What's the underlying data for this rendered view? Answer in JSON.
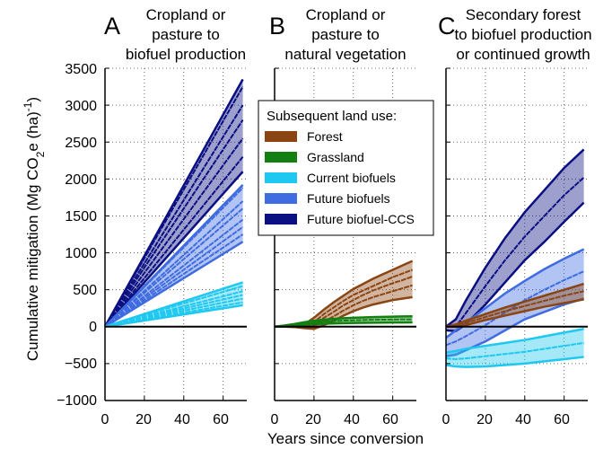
{
  "figure": {
    "xlabel": "Years since conversion",
    "ylabel_main": "Cumulative mitigation (Mg CO",
    "ylabel_sub": "2",
    "ylabel_mid": "e (ha)",
    "ylabel_sup": "-1",
    "ylabel_end": ")"
  },
  "legend": {
    "title": "Subsequent land use:",
    "items": [
      {
        "label": "Forest",
        "color": "#8B4513"
      },
      {
        "label": "Grassland",
        "color": "#118011"
      },
      {
        "label": "Current biofuels",
        "color": "#1EC8F0"
      },
      {
        "label": "Future biofuels",
        "color": "#3F6CE0"
      },
      {
        "label": "Future biofuel-CCS",
        "color": "#0A0F82"
      }
    ]
  },
  "axes": {
    "y_ticks": [
      "3500",
      "3000",
      "2500",
      "2000",
      "1500",
      "1000",
      "500",
      "0",
      "−500",
      "−1000"
    ],
    "x_ticks": [
      "0",
      "20",
      "40",
      "60"
    ]
  },
  "panels": [
    {
      "letter": "A",
      "title_lines": [
        "Cropland or",
        "pasture to",
        "biofuel production"
      ]
    },
    {
      "letter": "B",
      "title_lines": [
        "Cropland or",
        "pasture to",
        "natural vegetation"
      ]
    },
    {
      "letter": "C",
      "title_lines": [
        "Secondary forest",
        "to biofuel production",
        "or continued growth"
      ]
    }
  ],
  "chart_data": [
    {
      "type": "area",
      "panel": "A",
      "xlim": [
        0,
        72
      ],
      "ylim": [
        -1000,
        3500
      ],
      "grid": true,
      "x": [
        0,
        70
      ],
      "series": [
        {
          "name": "Future biofuel-CCS",
          "color": "#0A0F82",
          "band": {
            "lower_end": 2100,
            "upper_end": 3350
          },
          "lines_end": [
            2300,
            2550,
            2800,
            3000,
            3250
          ]
        },
        {
          "name": "Future biofuels",
          "color": "#3F6CE0",
          "band": {
            "lower_end": 1150,
            "upper_end": 1920
          },
          "lines_end": [
            1250,
            1350,
            1450,
            1600,
            1700,
            1880
          ]
        },
        {
          "name": "Current biofuels",
          "color": "#1EC8F0",
          "band": {
            "lower_end": 290,
            "upper_end": 600
          },
          "lines_end": [
            330,
            380,
            430,
            480,
            550
          ]
        }
      ]
    },
    {
      "type": "area",
      "panel": "B",
      "xlim": [
        0,
        72
      ],
      "ylim": [
        -1000,
        3500
      ],
      "grid": true,
      "series": [
        {
          "name": "Forest",
          "color": "#8B4513",
          "x": [
            0,
            5,
            10,
            15,
            20,
            25,
            30,
            35,
            40,
            45,
            50,
            55,
            60,
            65,
            70
          ],
          "upper": [
            0,
            5,
            10,
            30,
            120,
            230,
            330,
            420,
            510,
            580,
            650,
            710,
            770,
            830,
            890
          ],
          "lower": [
            0,
            0,
            -5,
            -20,
            -30,
            20,
            80,
            150,
            210,
            260,
            300,
            330,
            360,
            380,
            400
          ],
          "lines": [
            [
              0,
              3,
              0,
              -15,
              20,
              120,
              200,
              290,
              360,
              430,
              490,
              540,
              590,
              630,
              680
            ],
            [
              0,
              4,
              5,
              5,
              60,
              170,
              260,
              350,
              430,
              490,
              550,
              610,
              670,
              720,
              770
            ],
            [
              0,
              2,
              -3,
              -18,
              -10,
              70,
              140,
              220,
              290,
              350,
              400,
              440,
              480,
              520,
              560
            ]
          ]
        },
        {
          "name": "Grassland",
          "color": "#118011",
          "x": [
            0,
            5,
            10,
            15,
            20,
            25,
            30,
            35,
            40,
            45,
            50,
            55,
            60,
            65,
            70
          ],
          "upper": [
            0,
            15,
            35,
            60,
            80,
            95,
            105,
            115,
            120,
            125,
            130,
            133,
            136,
            139,
            140
          ],
          "lower": [
            0,
            5,
            15,
            25,
            35,
            40,
            45,
            48,
            50,
            52,
            54,
            55,
            56,
            57,
            58
          ],
          "lines": [
            [
              0,
              10,
              25,
              42,
              58,
              68,
              75,
              82,
              86,
              90,
              93,
              95,
              97,
              99,
              100
            ]
          ]
        }
      ]
    },
    {
      "type": "area",
      "panel": "C",
      "xlim": [
        0,
        72
      ],
      "ylim": [
        -1000,
        3500
      ],
      "grid": true,
      "series": [
        {
          "name": "Future biofuel-CCS",
          "color": "#0A0F82",
          "x": [
            0,
            5,
            10,
            20,
            30,
            40,
            50,
            60,
            70
          ],
          "upper": [
            0,
            100,
            350,
            800,
            1200,
            1550,
            1850,
            2150,
            2400
          ],
          "lower": [
            -50,
            -60,
            30,
            300,
            600,
            900,
            1150,
            1420,
            1680
          ],
          "lines": [
            [
              0,
              0,
              180,
              550,
              900,
              1220,
              1500,
              1780,
              2020
            ]
          ]
        },
        {
          "name": "Future biofuels",
          "color": "#3F6CE0",
          "x": [
            0,
            5,
            10,
            20,
            30,
            40,
            50,
            60,
            70
          ],
          "upper": [
            -150,
            -50,
            50,
            250,
            450,
            620,
            780,
            920,
            1050
          ],
          "lower": [
            -400,
            -380,
            -320,
            -200,
            -50,
            100,
            200,
            300,
            380
          ],
          "lines": [
            [
              -250,
              -200,
              -130,
              20,
              190,
              360,
              500,
              630,
              750
            ]
          ]
        },
        {
          "name": "Current biofuels",
          "color": "#1EC8F0",
          "x": [
            0,
            5,
            10,
            20,
            30,
            40,
            50,
            60,
            70
          ],
          "upper": [
            -350,
            -330,
            -300,
            -260,
            -220,
            -180,
            -130,
            -80,
            -30
          ],
          "lower": [
            -520,
            -540,
            -545,
            -540,
            -520,
            -500,
            -470,
            -440,
            -410
          ],
          "lines": [
            [
              -430,
              -440,
              -430,
              -400,
              -370,
              -340,
              -300,
              -260,
              -220
            ]
          ]
        },
        {
          "name": "Forest",
          "color": "#8B4513",
          "x": [
            0,
            5,
            10,
            20,
            30,
            40,
            50,
            60,
            70
          ],
          "upper": [
            0,
            30,
            80,
            170,
            260,
            340,
            420,
            500,
            580
          ],
          "lower": [
            0,
            0,
            20,
            90,
            150,
            210,
            270,
            320,
            370
          ],
          "lines": [
            [
              0,
              15,
              50,
              130,
              210,
              280,
              350,
              420,
              480
            ]
          ]
        }
      ]
    }
  ]
}
